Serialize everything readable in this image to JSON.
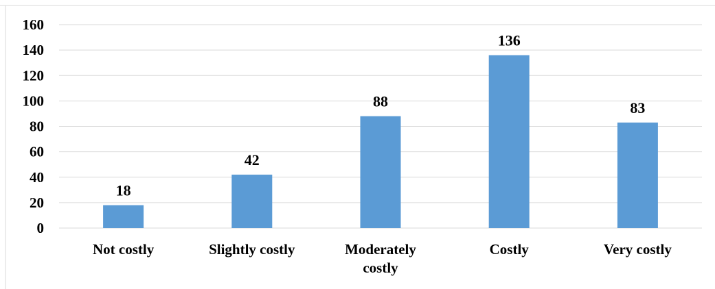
{
  "chart_data": {
    "type": "bar",
    "categories": [
      "Not costly",
      "Slightly costly",
      "Moderately costly",
      "Costly",
      "Very costly"
    ],
    "category_lines": [
      [
        "Not costly"
      ],
      [
        "Slightly costly"
      ],
      [
        "Moderately",
        "costly"
      ],
      [
        "Costly"
      ],
      [
        "Very costly"
      ]
    ],
    "values": [
      18,
      42,
      88,
      136,
      83
    ],
    "data_labels": [
      "18",
      "42",
      "88",
      "136",
      "83"
    ],
    "yticks": [
      0,
      20,
      40,
      60,
      80,
      100,
      120,
      140,
      160
    ],
    "ylim": [
      0,
      160
    ],
    "grid": true,
    "legend": "none",
    "bar_color": "#5b9bd5"
  }
}
